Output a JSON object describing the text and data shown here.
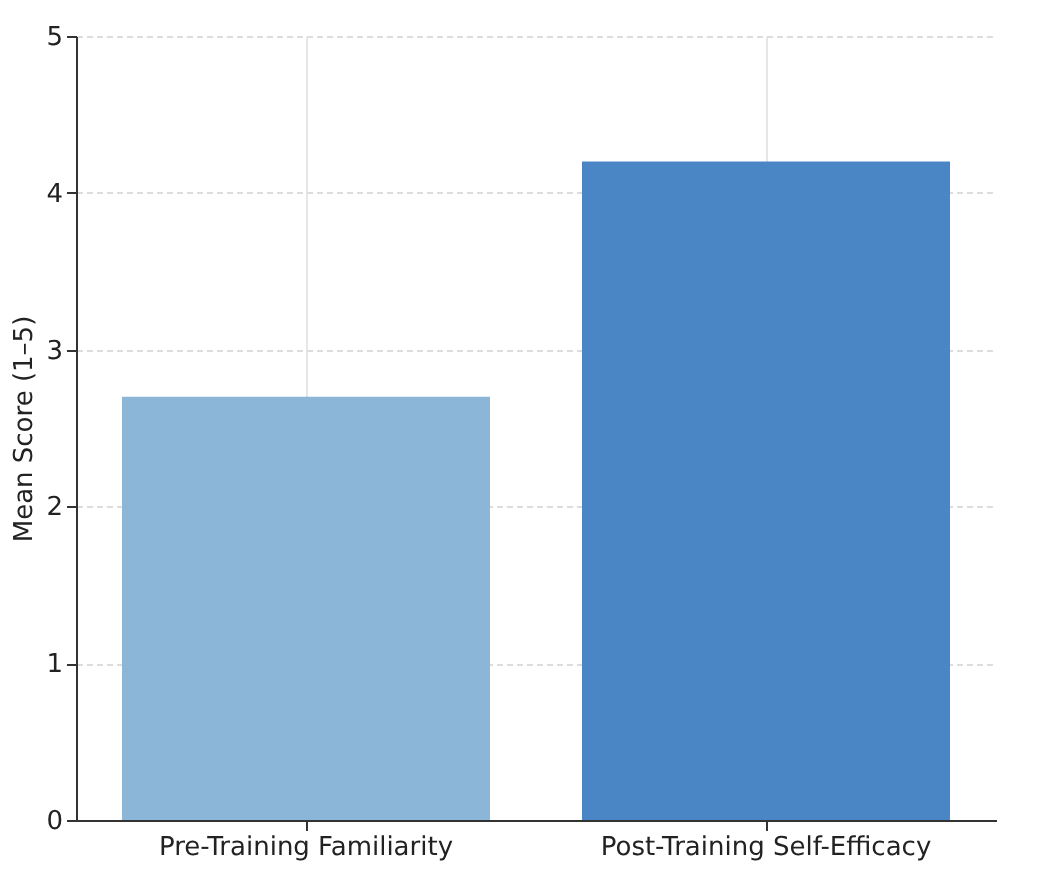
{
  "chart_data": {
    "type": "bar",
    "ylabel": "Mean Score (1–5)",
    "categories": [
      "Pre-Training Familiarity",
      "Post-Training Self-Efficacy"
    ],
    "values": [
      2.7,
      4.2
    ],
    "colors": [
      "#8cb6d8",
      "#4a86c5"
    ],
    "ylim": [
      0,
      5
    ],
    "yticks": [
      0,
      1,
      2,
      3,
      4,
      5
    ],
    "grid": true
  }
}
